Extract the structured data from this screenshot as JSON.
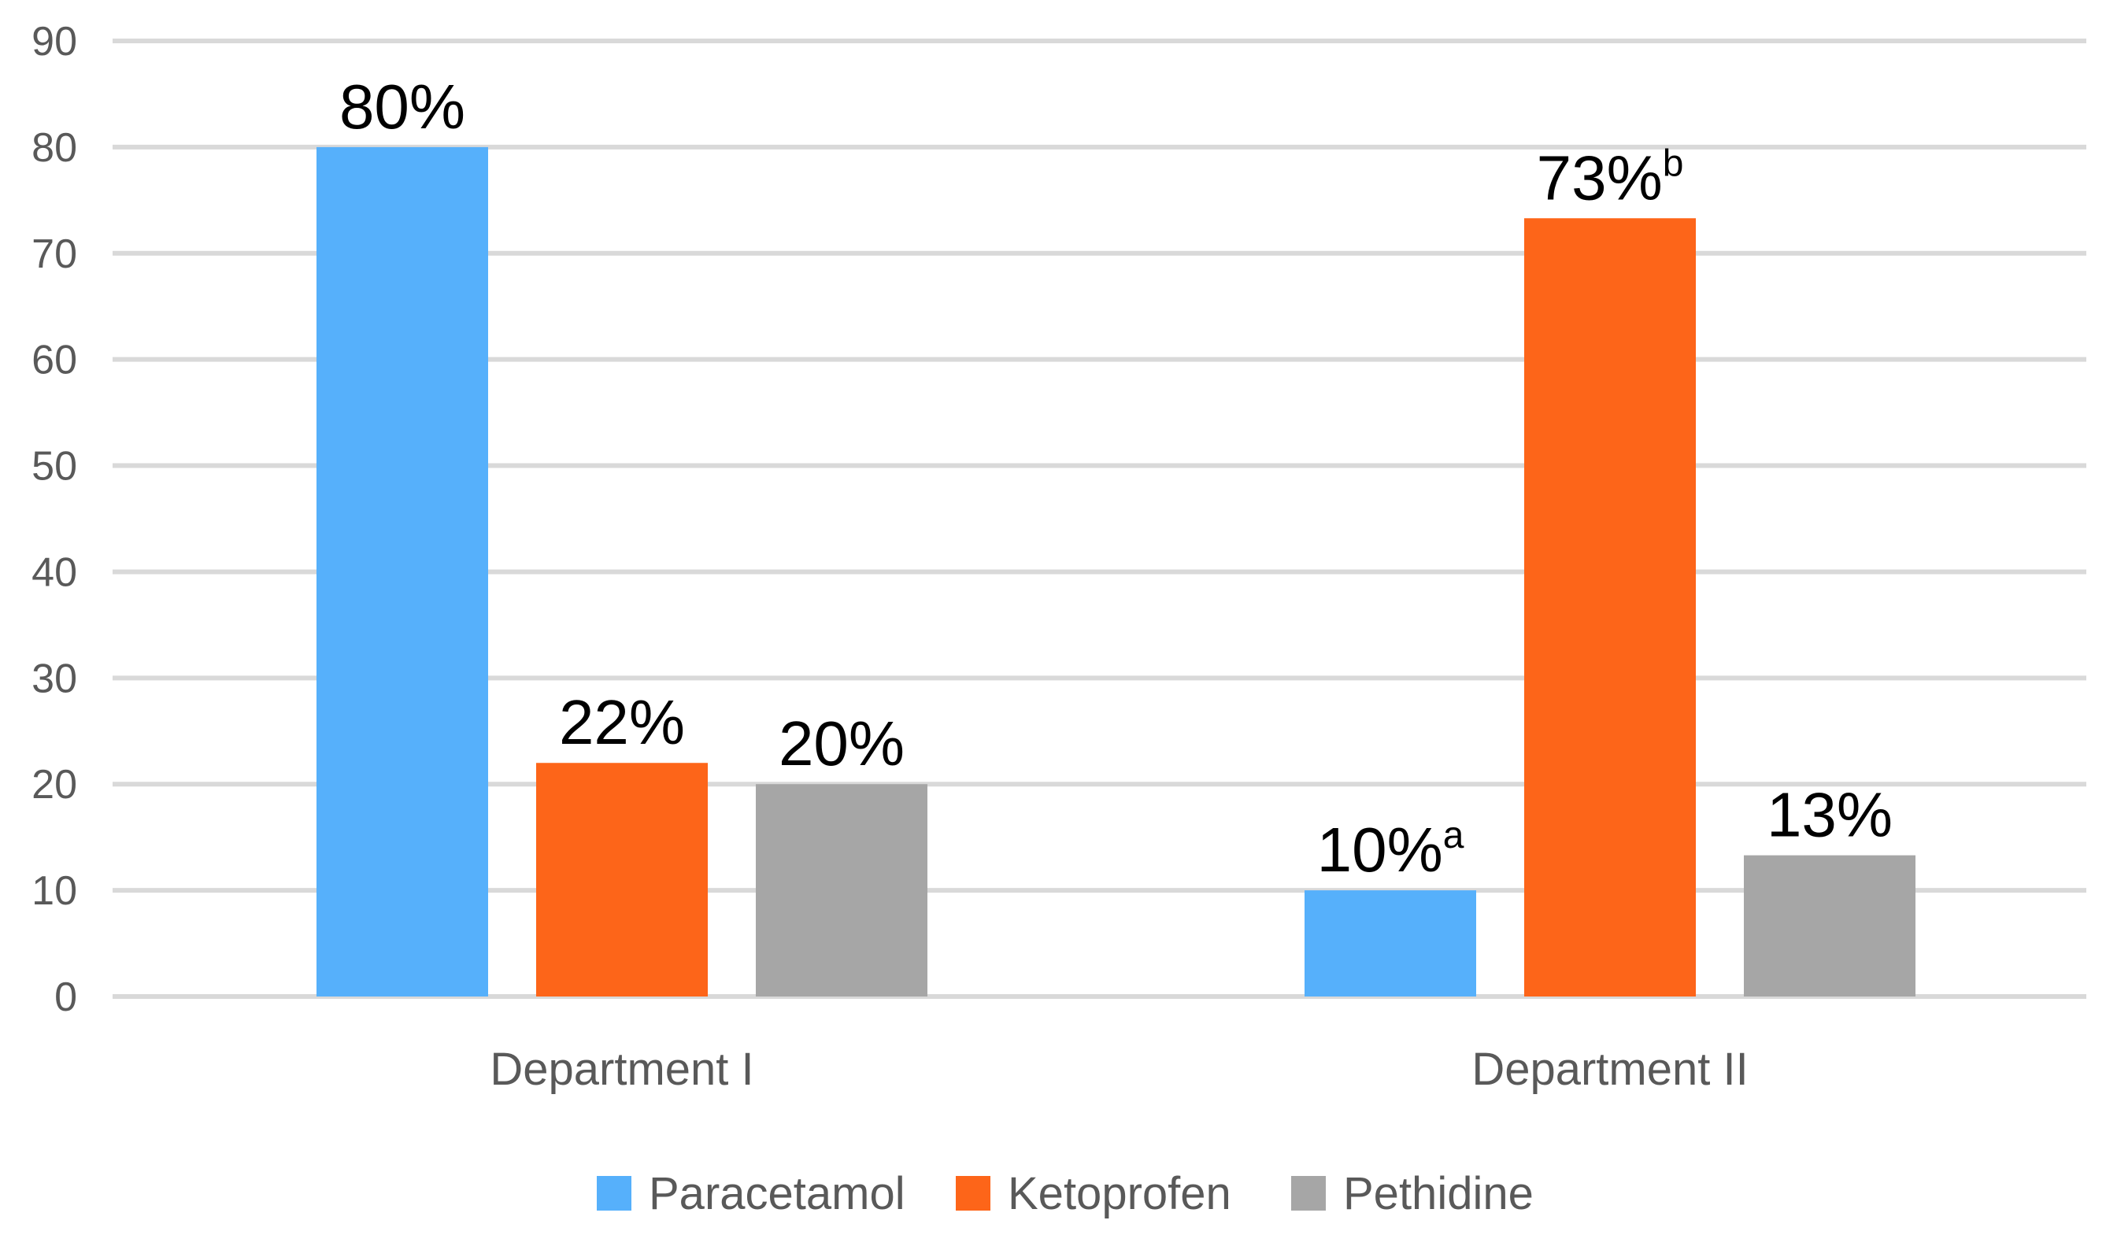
{
  "chart_data": {
    "type": "bar",
    "categories": [
      "Department I",
      "Department II"
    ],
    "series": [
      {
        "name": "Paracetamol",
        "color": "#56b0fb",
        "values": [
          80,
          10
        ],
        "labels": [
          "80%",
          "10%"
        ],
        "sups": [
          "",
          "a"
        ]
      },
      {
        "name": "Ketoprofen",
        "color": "#fd6519",
        "values": [
          22,
          73.3
        ],
        "labels": [
          "22%",
          "73%"
        ],
        "sups": [
          "",
          "b"
        ]
      },
      {
        "name": "Pethidine",
        "color": "#a6a6a6",
        "values": [
          20,
          13.3
        ],
        "labels": [
          "20%",
          "13%"
        ],
        "sups": [
          "",
          ""
        ]
      }
    ],
    "ylim": [
      0,
      90
    ],
    "yticks": [
      "0",
      "10",
      "20",
      "30",
      "40",
      "50",
      "60",
      "70",
      "80",
      "90"
    ],
    "grid": true,
    "legend_position": "bottom",
    "gridline_color": "#d9d9d9"
  }
}
